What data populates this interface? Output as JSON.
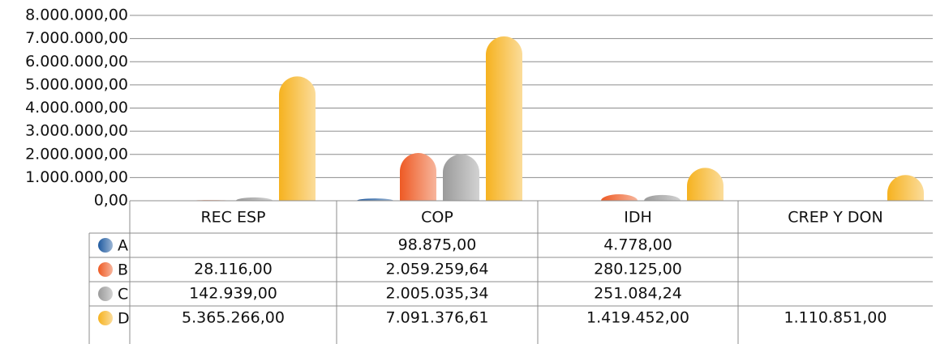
{
  "chart_data": {
    "type": "bar",
    "categories": [
      "REC ESP",
      "COP",
      "IDH",
      "CREP Y DON"
    ],
    "series": [
      {
        "name": "A",
        "color": "#1f5aa0",
        "values": [
          null,
          98875,
          4778,
          null
        ],
        "value_labels": [
          null,
          "98.875,00",
          "4.778,00",
          null
        ]
      },
      {
        "name": "B",
        "color": "#ee5a24",
        "values": [
          28116,
          2059259.64,
          280125,
          null
        ],
        "value_labels": [
          "28.116,00",
          "2.059.259,64",
          "280.125,00",
          null
        ]
      },
      {
        "name": "C",
        "color": "#9a9a9a",
        "values": [
          142939,
          2005035.34,
          251084.24,
          null
        ],
        "value_labels": [
          "142.939,00",
          "2.005.035,34",
          "251.084,24",
          null
        ]
      },
      {
        "name": "D",
        "color": "#f6b21f",
        "values": [
          5365266,
          7091376.61,
          1419452,
          1110851
        ],
        "value_labels": [
          "5.365.266,00",
          "7.091.376,61",
          "1.419.452,00",
          "1.110.851,00"
        ]
      }
    ],
    "ylim": [
      0,
      8000000
    ],
    "yticks": [
      {
        "value": 0,
        "label": "0,00"
      },
      {
        "value": 1000000,
        "label": "1.000.000,00"
      },
      {
        "value": 2000000,
        "label": "2.000.000,00"
      },
      {
        "value": 3000000,
        "label": "3.000.000,00"
      },
      {
        "value": 4000000,
        "label": "4.000.000,00"
      },
      {
        "value": 5000000,
        "label": "5.000.000,00"
      },
      {
        "value": 6000000,
        "label": "6.000.000,00"
      },
      {
        "value": 7000000,
        "label": "7.000.000,00"
      },
      {
        "value": 8000000,
        "label": "8.000.000,00"
      }
    ],
    "grid": true
  }
}
